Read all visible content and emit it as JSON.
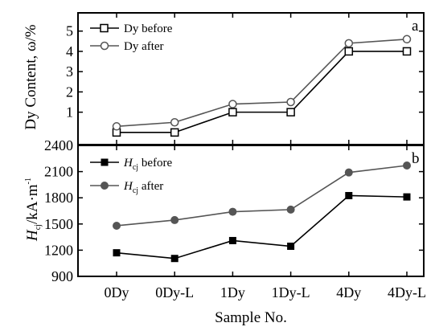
{
  "chart_data": [
    {
      "type": "line",
      "panel_label": "a",
      "ylabel": "Dy Content, ω/%",
      "yticks": [
        1,
        2,
        3,
        4,
        5
      ],
      "ylim": [
        -0.6,
        5.9
      ],
      "categories": [
        "0Dy",
        "0Dy-L",
        "1Dy",
        "1Dy-L",
        "4Dy",
        "4Dy-L"
      ],
      "legend_position": "top-left",
      "series": [
        {
          "name": "Dy before",
          "marker": "square-open",
          "color": "#000000",
          "values": [
            0.0,
            0.0,
            1.0,
            1.0,
            4.0,
            4.0
          ]
        },
        {
          "name": "Dy after",
          "marker": "circle-open",
          "color": "#555555",
          "values": [
            0.3,
            0.5,
            1.4,
            1.5,
            4.4,
            4.6
          ]
        }
      ]
    },
    {
      "type": "line",
      "panel_label": "b",
      "ylabel_main": "H",
      "ylabel_sub": "cj",
      "ylabel_unit": "/kA·m",
      "ylabel_sup": "-1",
      "yticks": [
        900,
        1200,
        1500,
        1800,
        2100,
        2400
      ],
      "ylim": [
        900,
        2400
      ],
      "categories": [
        "0Dy",
        "0Dy-L",
        "1Dy",
        "1Dy-L",
        "4Dy",
        "4Dy-L"
      ],
      "xlabel": "Sample No.",
      "legend_position": "top-left",
      "series": [
        {
          "name_main": "H",
          "name_sub": "cj",
          "name_rest": " before",
          "marker": "square-filled",
          "color": "#000000",
          "values": [
            1170,
            1105,
            1310,
            1245,
            1825,
            1810
          ]
        },
        {
          "name_main": "H",
          "name_sub": "cj",
          "name_rest": " after",
          "marker": "circle-filled",
          "color": "#555555",
          "values": [
            1480,
            1545,
            1640,
            1665,
            2090,
            2170
          ]
        }
      ]
    }
  ]
}
